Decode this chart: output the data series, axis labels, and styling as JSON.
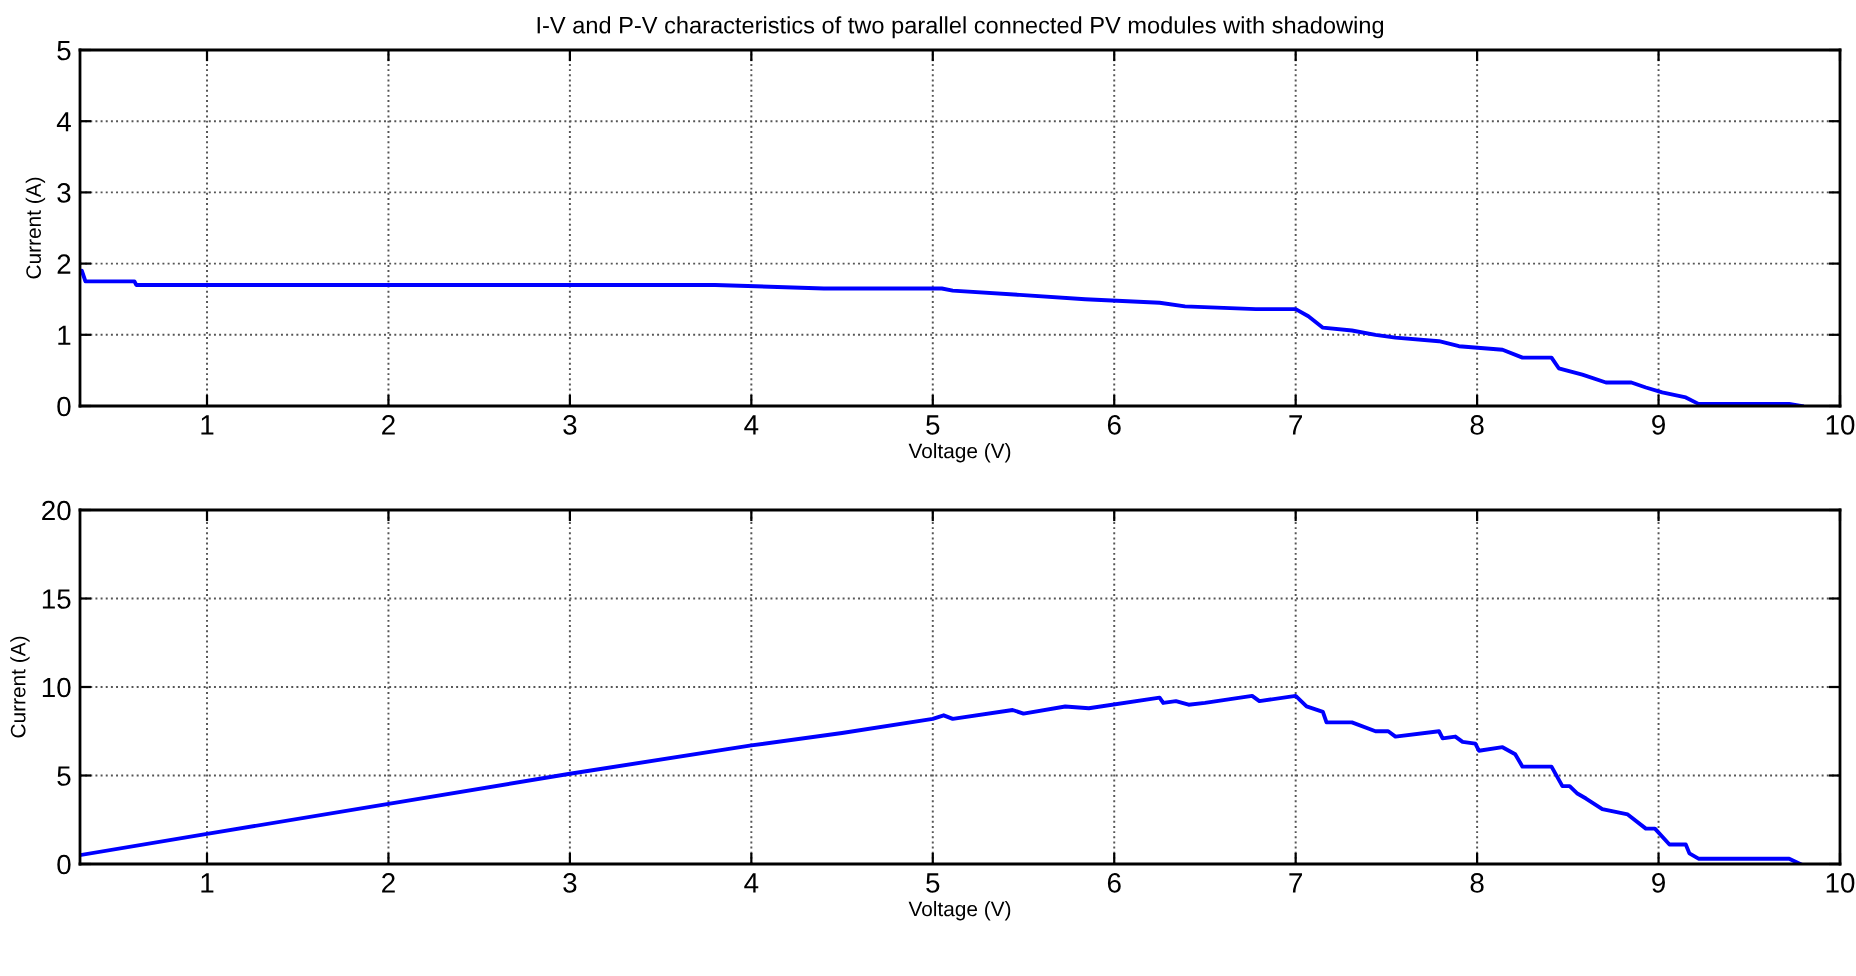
{
  "chart_data": [
    {
      "type": "line",
      "title": "I-V and P-V characteristics of two parallel connected PV modules with shadowing",
      "xlabel": "Voltage (V)",
      "ylabel": "Current (A)",
      "xlim": [
        0.3,
        10
      ],
      "ylim": [
        0,
        5
      ],
      "xticks": [
        1,
        2,
        3,
        4,
        5,
        6,
        7,
        8,
        9,
        10
      ],
      "yticks": [
        0,
        1,
        2,
        3,
        4,
        5
      ],
      "grid": true,
      "series": [
        {
          "color": "#0000ff",
          "x": [
            0.3,
            0.31,
            0.33,
            0.6,
            0.61,
            3.8,
            4.4,
            5.05,
            5.11,
            5.48,
            5.84,
            6.25,
            6.39,
            6.78,
            7.0,
            7.07,
            7.15,
            7.31,
            7.44,
            7.55,
            7.79,
            7.9,
            8.14,
            8.25,
            8.41,
            8.45,
            8.58,
            8.71,
            8.85,
            8.93,
            9.02,
            9.15,
            9.22,
            9.72,
            9.79
          ],
          "values": [
            1.9,
            1.9,
            1.75,
            1.75,
            1.7,
            1.7,
            1.65,
            1.65,
            1.62,
            1.56,
            1.5,
            1.45,
            1.4,
            1.36,
            1.36,
            1.26,
            1.1,
            1.06,
            1.0,
            0.96,
            0.91,
            0.84,
            0.79,
            0.68,
            0.68,
            0.53,
            0.44,
            0.33,
            0.33,
            0.26,
            0.19,
            0.12,
            0.03,
            0.03,
            0
          ]
        }
      ]
    },
    {
      "type": "line",
      "xlabel": "Voltage (V)",
      "ylabel": "Current (A)",
      "xlim": [
        0.3,
        10
      ],
      "ylim": [
        0,
        20
      ],
      "xticks": [
        1,
        2,
        3,
        4,
        5,
        6,
        7,
        8,
        9,
        10
      ],
      "yticks": [
        0,
        5,
        10,
        15,
        20
      ],
      "grid": true,
      "series": [
        {
          "color": "#0000ff",
          "x": [
            0.3,
            1,
            2,
            3,
            4,
            4.5,
            5,
            5.06,
            5.11,
            5.44,
            5.5,
            5.73,
            5.86,
            6.25,
            6.27,
            6.34,
            6.41,
            6.5,
            6.76,
            6.8,
            7.0,
            7.06,
            7.15,
            7.17,
            7.31,
            7.44,
            7.51,
            7.55,
            7.79,
            7.81,
            7.88,
            7.92,
            7.99,
            8.01,
            8.14,
            8.21,
            8.25,
            8.41,
            8.47,
            8.51,
            8.55,
            8.6,
            8.69,
            8.83,
            8.93,
            8.98,
            9.06,
            9.15,
            9.17,
            9.22,
            9.72,
            9.78
          ],
          "values": [
            0.5,
            1.7,
            3.4,
            5.1,
            6.7,
            7.4,
            8.2,
            8.4,
            8.2,
            8.7,
            8.5,
            8.9,
            8.8,
            9.4,
            9.1,
            9.2,
            9.0,
            9.1,
            9.5,
            9.2,
            9.5,
            8.9,
            8.6,
            8.0,
            8.0,
            7.5,
            7.5,
            7.2,
            7.5,
            7.1,
            7.2,
            6.9,
            6.8,
            6.4,
            6.6,
            6.2,
            5.5,
            5.5,
            4.4,
            4.4,
            4.0,
            3.7,
            3.1,
            2.8,
            2.0,
            2.0,
            1.1,
            1.1,
            0.6,
            0.3,
            0.3,
            0
          ]
        }
      ]
    }
  ]
}
